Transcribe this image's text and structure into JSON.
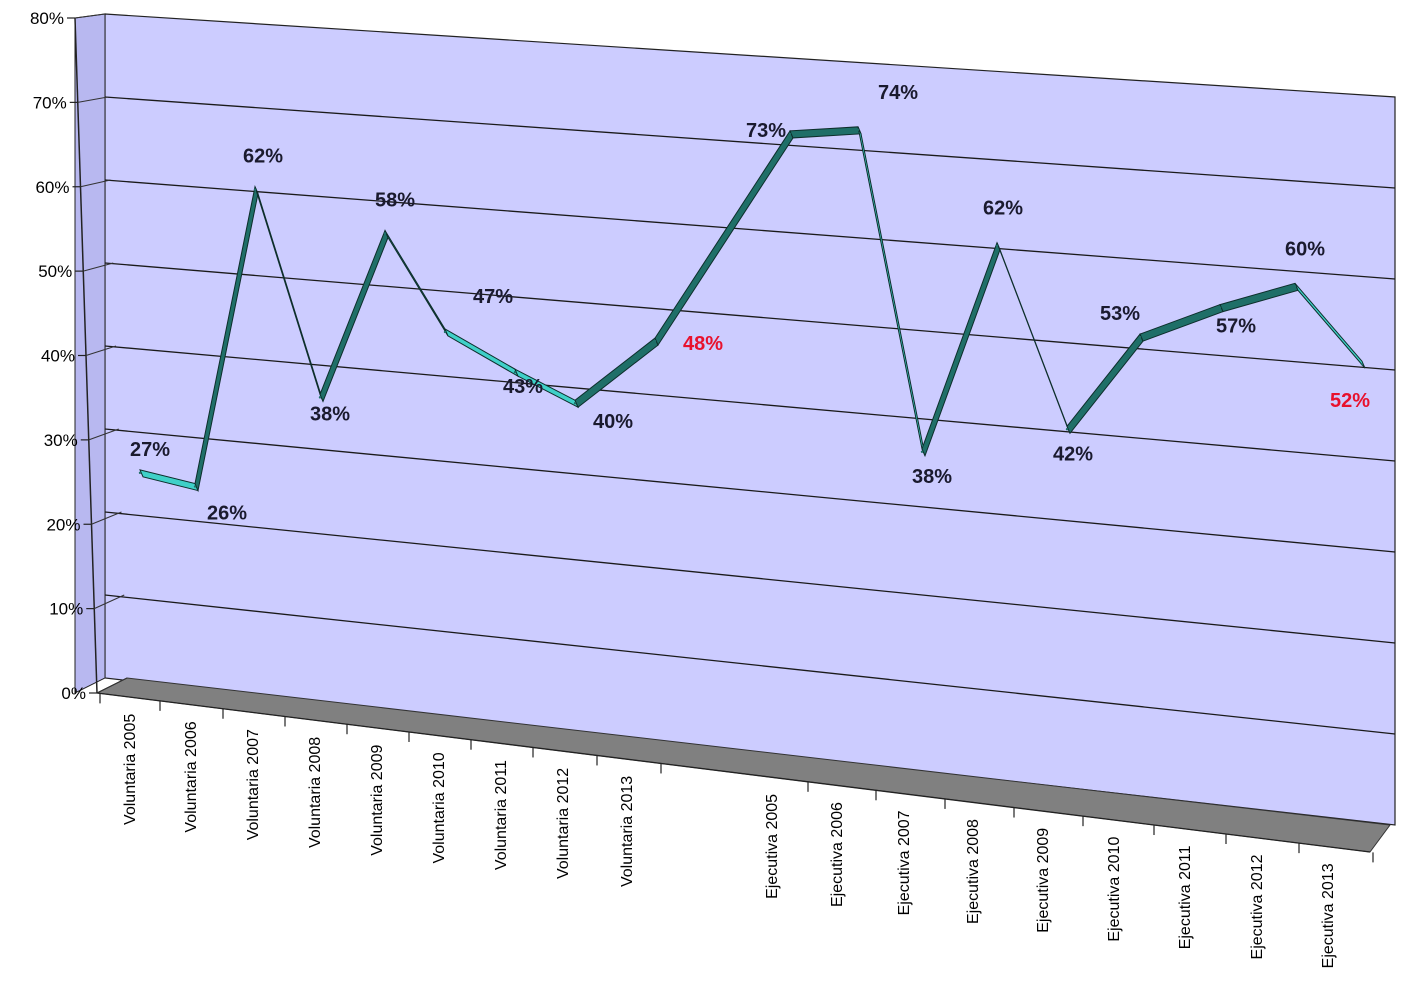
{
  "chart_data": {
    "type": "line",
    "title": "",
    "xlabel": "",
    "ylabel": "",
    "ylim": [
      0,
      80
    ],
    "y_ticks": [
      "0%",
      "10%",
      "20%",
      "30%",
      "40%",
      "50%",
      "60%",
      "70%",
      "80%"
    ],
    "grid": true,
    "three_d": true,
    "colors": {
      "wall": "#ccccff",
      "floor": "#808080",
      "ribbon_front": "#3fd0c8",
      "ribbon_side": "#1f6f68",
      "label": "#1a1a2e",
      "highlight_label": "#e8112d"
    },
    "categories": [
      "Voluntaria 2005",
      "Voluntaria 2006",
      "Voluntaria 2007",
      "Voluntaria 2008",
      "Voluntaria 2009",
      "Voluntaria 2010",
      "Voluntaria 2011",
      "Voluntaria  2012",
      "Voluntaria 2013",
      "Ejecutiva 2005",
      "Ejecutiva 2006",
      "Ejecutiva 2007",
      "Ejecutiva 2008",
      "Ejecutiva 2009",
      "Ejecutiva 2010",
      "Ejecutiva 2011",
      "Ejecutiva 2012",
      "Ejecutiva 2013"
    ],
    "series": [
      {
        "values": [
          27,
          26,
          62,
          38,
          58,
          47,
          43,
          40,
          48,
          73,
          74,
          38,
          62,
          42,
          53,
          57,
          60,
          52
        ],
        "labels": [
          "27%",
          "26%",
          "62%",
          "38%",
          "58%",
          "47%",
          "43%",
          "40%",
          "48%",
          "73%",
          "74%",
          "38%",
          "62%",
          "42%",
          "53%",
          "57%",
          "60%",
          "52%"
        ],
        "highlighted": [
          8,
          17
        ]
      }
    ]
  }
}
